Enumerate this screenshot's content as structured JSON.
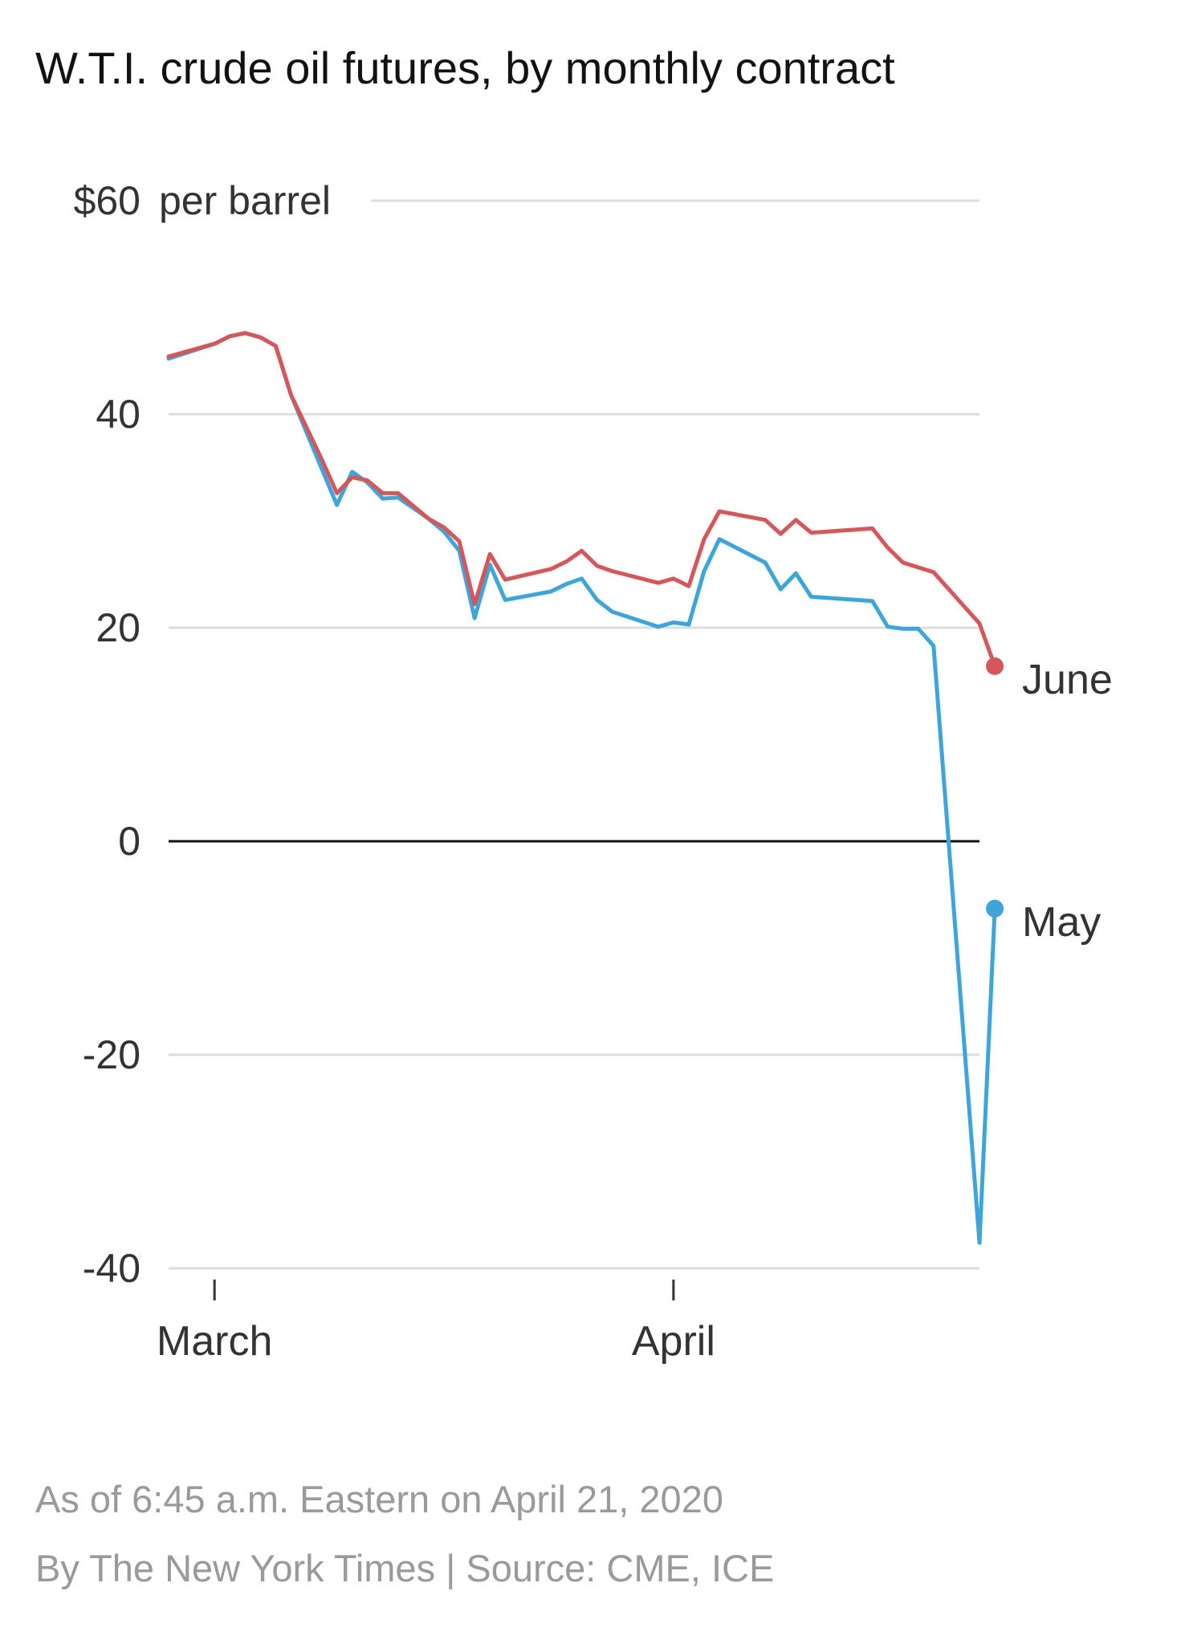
{
  "chart_data": {
    "type": "line",
    "title": "W.T.I. crude oil futures, by monthly contract",
    "y_unit": "$60 per barrel",
    "y_tick_labels": [
      "$60",
      "40",
      "20",
      "0",
      "-20",
      "-40"
    ],
    "yticks": [
      60,
      40,
      20,
      0,
      -20,
      -40
    ],
    "ylim": [
      -40,
      60
    ],
    "x_tick_labels": [
      "March",
      "April"
    ],
    "x_ticks": [
      "2020-03-02",
      "2020-04-01"
    ],
    "xlim": [
      "2020-02-28",
      "2020-04-21"
    ],
    "grid": true,
    "zero_line": true,
    "series": [
      {
        "name": "June",
        "color": "#d6575a",
        "end_label": "June",
        "points": [
          [
            "2020-02-28",
            45.4
          ],
          [
            "2020-03-02",
            46.6
          ],
          [
            "2020-03-03",
            47.3
          ],
          [
            "2020-03-04",
            47.6
          ],
          [
            "2020-03-05",
            47.2
          ],
          [
            "2020-03-06",
            46.4
          ],
          [
            "2020-03-07",
            41.8
          ],
          [
            "2020-03-09",
            35.8
          ],
          [
            "2020-03-10",
            32.6
          ],
          [
            "2020-03-11",
            34.1
          ],
          [
            "2020-03-12",
            33.8
          ],
          [
            "2020-03-13",
            32.6
          ],
          [
            "2020-03-14",
            32.6
          ],
          [
            "2020-03-16",
            30.2
          ],
          [
            "2020-03-17",
            29.4
          ],
          [
            "2020-03-18",
            28.1
          ],
          [
            "2020-03-19",
            22.2
          ],
          [
            "2020-03-20",
            26.9
          ],
          [
            "2020-03-21",
            24.5
          ],
          [
            "2020-03-24",
            25.5
          ],
          [
            "2020-03-25",
            26.2
          ],
          [
            "2020-03-26",
            27.2
          ],
          [
            "2020-03-27",
            25.8
          ],
          [
            "2020-03-28",
            25.3
          ],
          [
            "2020-03-31",
            24.2
          ],
          [
            "2020-04-01",
            24.6
          ],
          [
            "2020-04-02",
            23.9
          ],
          [
            "2020-04-03",
            28.3
          ],
          [
            "2020-04-04",
            30.9
          ],
          [
            "2020-04-07",
            30.1
          ],
          [
            "2020-04-08",
            28.8
          ],
          [
            "2020-04-09",
            30.1
          ],
          [
            "2020-04-10",
            28.9
          ],
          [
            "2020-04-14",
            29.3
          ],
          [
            "2020-04-15",
            27.5
          ],
          [
            "2020-04-16",
            26.1
          ],
          [
            "2020-04-18",
            25.2
          ],
          [
            "2020-04-21",
            20.4
          ],
          [
            "2020-04-22",
            16.4
          ]
        ]
      },
      {
        "name": "May",
        "color": "#3ea5da",
        "end_label": "May",
        "points": [
          [
            "2020-02-28",
            45.2
          ],
          [
            "2020-03-02",
            46.6
          ],
          [
            "2020-03-03",
            47.3
          ],
          [
            "2020-03-04",
            47.6
          ],
          [
            "2020-03-05",
            47.2
          ],
          [
            "2020-03-06",
            46.4
          ],
          [
            "2020-03-07",
            41.8
          ],
          [
            "2020-03-10",
            31.5
          ],
          [
            "2020-03-11",
            34.6
          ],
          [
            "2020-03-12",
            33.6
          ],
          [
            "2020-03-13",
            32.1
          ],
          [
            "2020-03-14",
            32.2
          ],
          [
            "2020-03-16",
            30.2
          ],
          [
            "2020-03-17",
            29.0
          ],
          [
            "2020-03-18",
            27.2
          ],
          [
            "2020-03-19",
            20.9
          ],
          [
            "2020-03-20",
            25.9
          ],
          [
            "2020-03-21",
            22.6
          ],
          [
            "2020-03-24",
            23.4
          ],
          [
            "2020-03-25",
            24.1
          ],
          [
            "2020-03-26",
            24.6
          ],
          [
            "2020-03-27",
            22.6
          ],
          [
            "2020-03-28",
            21.5
          ],
          [
            "2020-03-31",
            20.1
          ],
          [
            "2020-04-01",
            20.5
          ],
          [
            "2020-04-02",
            20.3
          ],
          [
            "2020-04-03",
            25.3
          ],
          [
            "2020-04-04",
            28.3
          ],
          [
            "2020-04-07",
            26.1
          ],
          [
            "2020-04-08",
            23.6
          ],
          [
            "2020-04-09",
            25.1
          ],
          [
            "2020-04-10",
            22.9
          ],
          [
            "2020-04-14",
            22.5
          ],
          [
            "2020-04-15",
            20.1
          ],
          [
            "2020-04-16",
            19.9
          ],
          [
            "2020-04-17",
            19.9
          ],
          [
            "2020-04-18",
            18.3
          ],
          [
            "2020-04-21",
            -37.6
          ],
          [
            "2020-04-22",
            -6.3
          ]
        ]
      }
    ]
  },
  "footer": {
    "as_of": "As of 6:45 a.m. Eastern on April 21, 2020",
    "credit": "By The New York Times | Source: CME, ICE"
  }
}
